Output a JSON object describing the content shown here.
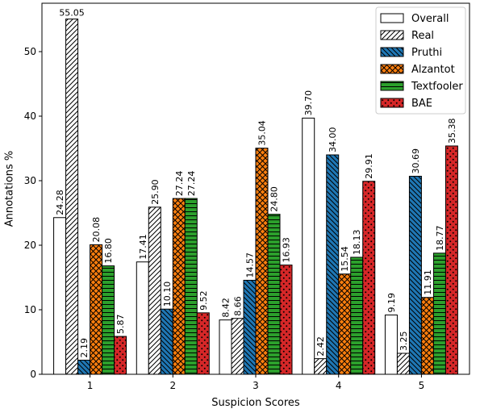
{
  "chart_data": {
    "type": "bar",
    "title": "",
    "xlabel": "Suspicion Scores",
    "ylabel": "Annotations %",
    "categories": [
      "1",
      "2",
      "3",
      "4",
      "5"
    ],
    "ylim": [
      0,
      57.5
    ],
    "yticks": [
      0,
      10,
      20,
      30,
      40,
      50
    ],
    "legend_position": "top-right",
    "grid": false,
    "series": [
      {
        "name": "Overall",
        "color": "#ffffff",
        "pattern": "none",
        "values": [
          24.28,
          17.41,
          8.42,
          39.7,
          9.19
        ],
        "labels": [
          "24.28",
          "17.41",
          "8.42",
          "39.70",
          "9.19"
        ]
      },
      {
        "name": "Real",
        "color": "#ffffff",
        "pattern": "diagonal-hatch",
        "values": [
          55.05,
          25.9,
          8.66,
          2.42,
          3.25
        ],
        "labels": [
          "55.05",
          "25.90",
          "8.66",
          "2.42",
          "3.25"
        ]
      },
      {
        "name": "Pruthi",
        "color": "#1f77b4",
        "pattern": "back-diagonal-hatch",
        "values": [
          2.19,
          10.1,
          14.57,
          34.0,
          30.69
        ],
        "labels": [
          "2.19",
          "10.10",
          "14.57",
          "34.00",
          "30.69"
        ]
      },
      {
        "name": "Alzantot",
        "color": "#ff7f0e",
        "pattern": "cross-hatch",
        "values": [
          20.08,
          27.24,
          35.04,
          15.54,
          11.91
        ],
        "labels": [
          "20.08",
          "27.24",
          "35.04",
          "15.54",
          "11.91"
        ]
      },
      {
        "name": "Textfooler",
        "color": "#2ca02c",
        "pattern": "horizontal-lines",
        "values": [
          16.8,
          27.24,
          24.8,
          18.13,
          18.77
        ],
        "labels": [
          "16.80",
          "27.24",
          "24.80",
          "18.13",
          "18.77"
        ]
      },
      {
        "name": "BAE",
        "color": "#d62728",
        "pattern": "dots",
        "values": [
          5.87,
          9.52,
          16.93,
          29.91,
          35.38
        ],
        "labels": [
          "5.87",
          "9.52",
          "16.93",
          "29.91",
          "35.38"
        ]
      }
    ]
  }
}
